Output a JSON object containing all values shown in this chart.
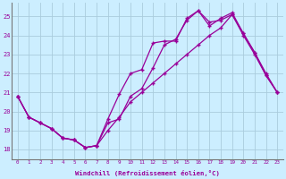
{
  "background_color": "#cceeff",
  "grid_color": "#aaccdd",
  "line_color": "#990099",
  "xlim": [
    -0.5,
    23.5
  ],
  "ylim": [
    17.5,
    25.7
  ],
  "xticks": [
    0,
    1,
    2,
    3,
    4,
    5,
    6,
    7,
    8,
    9,
    10,
    11,
    12,
    13,
    14,
    15,
    16,
    17,
    18,
    19,
    20,
    21,
    22,
    23
  ],
  "yticks": [
    18,
    19,
    20,
    21,
    22,
    23,
    24,
    25
  ],
  "xlabel": "Windchill (Refroidissement éolien,°C)",
  "series": [
    [
      20.8,
      19.7,
      19.4,
      19.1,
      18.6,
      18.5,
      18.1,
      18.2,
      19.0,
      19.7,
      20.5,
      21.0,
      21.5,
      22.0,
      22.5,
      23.0,
      23.5,
      24.0,
      24.4,
      25.1,
      24.0,
      23.0,
      21.9,
      21.0
    ],
    [
      20.8,
      19.7,
      19.4,
      19.1,
      18.6,
      18.5,
      18.1,
      18.2,
      19.6,
      20.9,
      22.0,
      22.2,
      23.6,
      23.7,
      23.7,
      24.9,
      25.3,
      24.7,
      24.8,
      25.1,
      24.1,
      23.1,
      21.9,
      21.0
    ],
    [
      20.8,
      19.7,
      19.4,
      19.1,
      18.6,
      18.5,
      18.1,
      18.2,
      19.4,
      19.6,
      20.8,
      21.2,
      22.3,
      23.5,
      23.8,
      24.8,
      25.3,
      24.5,
      24.9,
      25.2,
      24.1,
      23.1,
      22.0,
      21.0
    ]
  ]
}
